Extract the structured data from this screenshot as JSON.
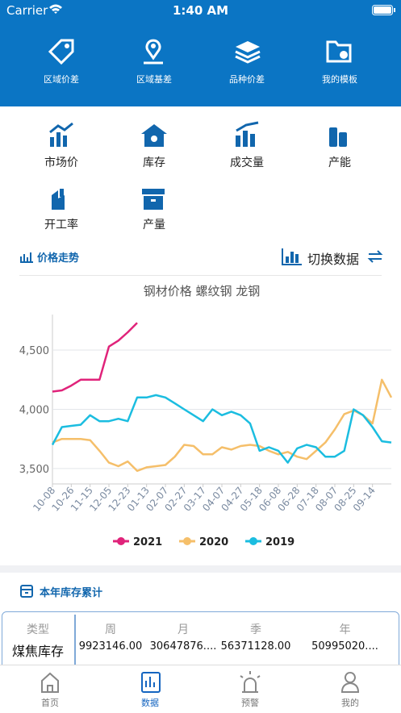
{
  "status_bar": {
    "carrier": "Carrier",
    "time": "1:40 AM"
  },
  "header_nav": [
    "区域价差",
    "区域基差",
    "品种价差",
    "我的模板"
  ],
  "grid_menu": [
    "市场价",
    "库存",
    "成交量",
    "产能",
    "开工率",
    "产量"
  ],
  "section": {
    "title": "价格走势",
    "switch": "切换数据"
  },
  "chart_data": {
    "type": "line",
    "title": "钢材价格 螺纹钢 龙钢",
    "categories": [
      "10-08",
      null,
      "10-26",
      null,
      "11-15",
      null,
      "12-05",
      null,
      "12-23",
      null,
      "01-13",
      null,
      "02-07",
      null,
      "02-27",
      null,
      "03-17",
      null,
      "04-07",
      null,
      "04-27",
      null,
      "05-18",
      null,
      "06-08",
      null,
      "06-28",
      null,
      "07-18",
      null,
      "08-07",
      null,
      "08-25",
      null,
      "09-14",
      null,
      null
    ],
    "series": [
      {
        "name": "2021",
        "color": "#e0237a",
        "values": [
          4150,
          4160,
          4200,
          4250,
          4250,
          4250,
          4530,
          4580,
          4650,
          4730,
          null,
          null,
          null,
          null,
          null,
          null,
          null,
          null,
          null,
          null,
          null,
          null,
          null,
          null,
          null,
          null,
          null,
          null,
          null,
          null,
          null,
          null,
          null,
          null,
          null,
          null,
          null
        ]
      },
      {
        "name": "2020",
        "color": "#f5bf6a",
        "values": [
          3720,
          3750,
          3750,
          3750,
          3740,
          3650,
          3550,
          3520,
          3560,
          3480,
          3510,
          3520,
          3530,
          3600,
          3700,
          3690,
          3620,
          3620,
          3680,
          3660,
          3690,
          3700,
          3690,
          3650,
          3620,
          3640,
          3600,
          3580,
          3650,
          3720,
          3830,
          3960,
          3990,
          3950,
          3880,
          4250,
          4100
        ]
      },
      {
        "name": "2019",
        "color": "#1bbde0",
        "values": [
          3700,
          3850,
          3860,
          3870,
          3950,
          3900,
          3900,
          3920,
          3900,
          4100,
          4100,
          4120,
          4100,
          4050,
          4000,
          3950,
          3900,
          4000,
          3950,
          3980,
          3950,
          3880,
          3650,
          3680,
          3650,
          3550,
          3670,
          3700,
          3680,
          3600,
          3600,
          3650,
          4000,
          3950,
          3850,
          3730,
          3720
        ]
      }
    ],
    "ylim": [
      3370,
      4800
    ],
    "yticks": [
      {
        "value": 3500,
        "label": "3,500"
      },
      {
        "value": 4000,
        "label": "4,000"
      },
      {
        "value": 4500,
        "label": "4,500"
      }
    ],
    "grid": true,
    "legend": "bottom"
  },
  "stock_card": {
    "title": "本年库存累计",
    "table": {
      "header": [
        "类型",
        "周",
        "月",
        "季",
        "年"
      ],
      "rows": [
        [
          "煤焦库存",
          "9923146.00",
          "30647876....",
          "56371128.00",
          "50995020...."
        ]
      ]
    }
  },
  "tab_bar": {
    "items": [
      "首页",
      "数据",
      "预警",
      "我的"
    ],
    "active": 1
  }
}
